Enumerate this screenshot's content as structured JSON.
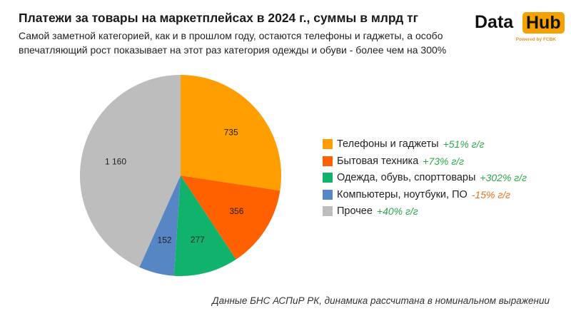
{
  "header": {
    "title": "Платежи за товары на маркетплейсах в 2024 г., суммы в млрд тг",
    "subtitle": "Самой заметной категорией, как и в прошлом году, остаются телефоны и гаджеты, а особо впечатляющий рост показывает на этот раз категория одежды и обуви - более чем на 300%"
  },
  "logo": {
    "word1": "Data",
    "word2": "Hub",
    "powered": "Powered by FCBK",
    "accent_color": "#f5a200"
  },
  "footnote": "Данные БНС АСПиР РК, динамика рассчитана в номинальном выражении",
  "chart_data": {
    "type": "pie",
    "title": "",
    "start_angle_deg": 0,
    "direction": "clockwise",
    "slices": [
      {
        "label": "Телефоны и гаджеты",
        "value": 735,
        "value_label": "735",
        "growth": "+51% г/г",
        "color": "#ff9e00",
        "growth_color": "#2ca84a"
      },
      {
        "label": "Бытовая техника",
        "value": 356,
        "value_label": "356",
        "growth": "+73% г/г",
        "color": "#ff6100",
        "growth_color": "#2ca84a"
      },
      {
        "label": "Одежда, обувь, спорттовары",
        "value": 277,
        "value_label": "277",
        "growth": "+302% г/г",
        "color": "#11b36c",
        "growth_color": "#2ca84a"
      },
      {
        "label": "Компьютеры, ноутбуки, ПО",
        "value": 152,
        "value_label": "152",
        "growth": "-15% г/г",
        "color": "#5786c4",
        "growth_color": "#e8711c"
      },
      {
        "label": "Прочее",
        "value": 1160,
        "value_label": "1 160",
        "growth": "+40% г/г",
        "color": "#bdbdbd",
        "growth_color": "#2ca84a"
      }
    ],
    "legend_position": "right"
  }
}
